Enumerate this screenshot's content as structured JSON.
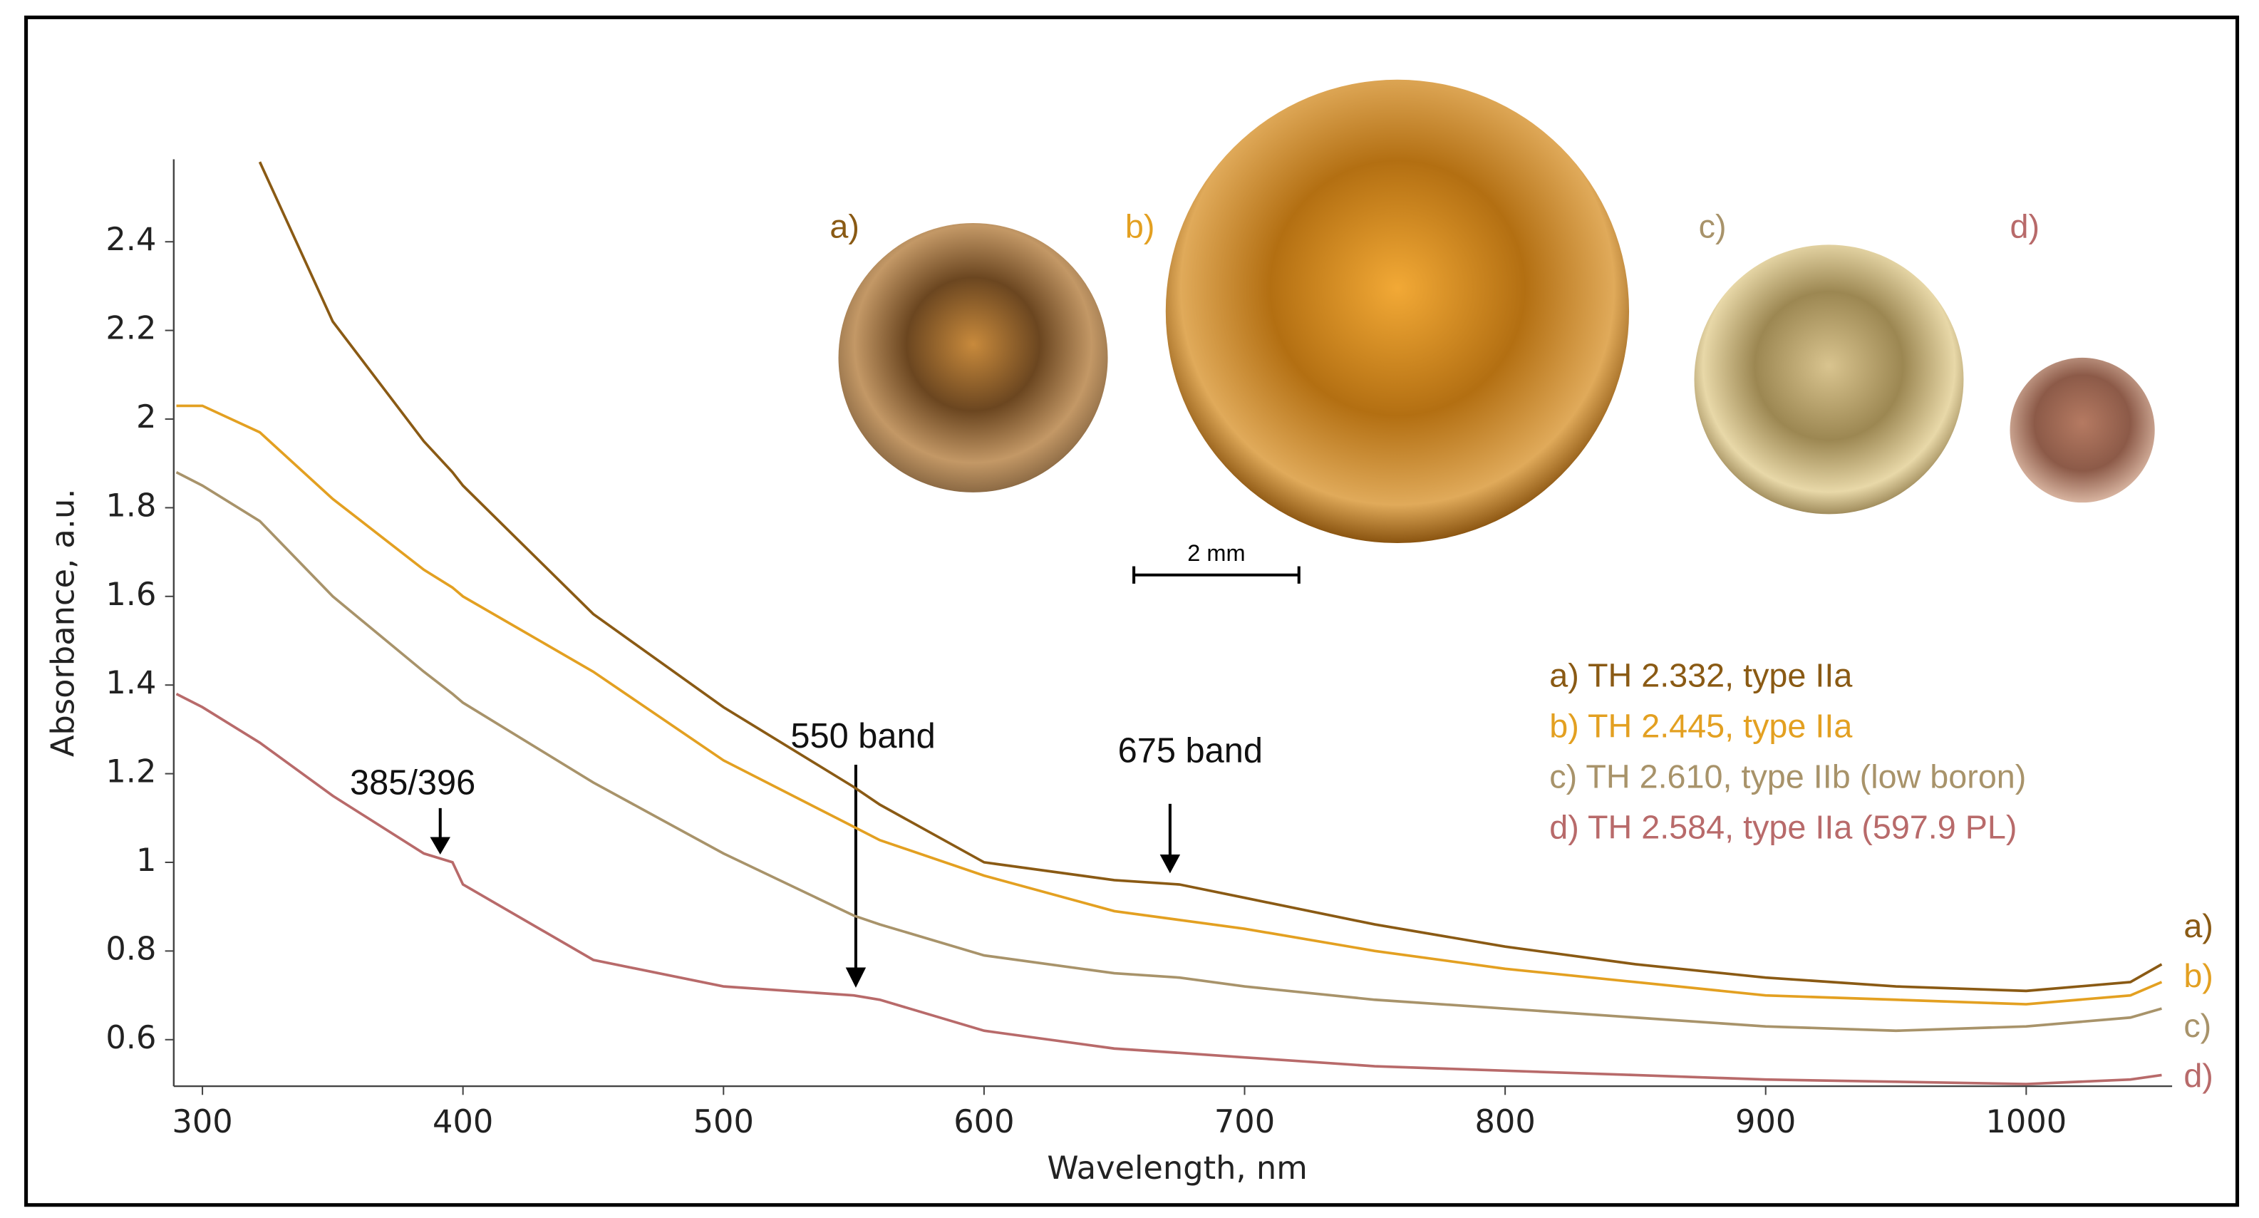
{
  "chart_data": {
    "type": "line",
    "x_label": "Wavelength, nm",
    "y_label": "Absorbance, a.u.",
    "xlim": [
      289,
      1056
    ],
    "ylim": [
      0.495,
      2.586
    ],
    "xticks": [
      300,
      400,
      500,
      600,
      700,
      800,
      900,
      1000
    ],
    "yticks": [
      0.6,
      0.8,
      1,
      1.2,
      1.4,
      1.6,
      1.8,
      2,
      2.2,
      2.4
    ],
    "x": [
      290,
      300,
      322,
      350,
      385,
      396,
      400,
      450,
      500,
      550,
      560,
      600,
      650,
      675,
      700,
      750,
      800,
      850,
      900,
      950,
      1000,
      1040,
      1052
    ],
    "series": [
      {
        "name": "a) TH 2.332, type IIa",
        "color": "#8a5a14",
        "values": [
          null,
          null,
          2.58,
          2.22,
          1.95,
          1.88,
          1.85,
          1.56,
          1.35,
          1.17,
          1.13,
          1.0,
          0.96,
          0.95,
          0.92,
          0.86,
          0.81,
          0.77,
          0.74,
          0.72,
          0.71,
          0.73,
          0.77
        ]
      },
      {
        "name": "b) TH 2.445, type IIa",
        "color": "#e3a021",
        "values": [
          2.03,
          2.03,
          1.97,
          1.82,
          1.66,
          1.62,
          1.6,
          1.43,
          1.23,
          1.08,
          1.05,
          0.97,
          0.89,
          0.87,
          0.85,
          0.8,
          0.76,
          0.73,
          0.7,
          0.69,
          0.68,
          0.7,
          0.73
        ]
      },
      {
        "name": "c) TH 2.610, type IIb (low boron)",
        "color": "#a8936a",
        "values": [
          1.88,
          1.85,
          1.77,
          1.6,
          1.43,
          1.38,
          1.36,
          1.18,
          1.02,
          0.88,
          0.86,
          0.79,
          0.75,
          0.74,
          0.72,
          0.69,
          0.67,
          0.65,
          0.63,
          0.62,
          0.63,
          0.65,
          0.67
        ]
      },
      {
        "name": "d) TH 2.584, type IIa (597.9 PL)",
        "color": "#b86a6a",
        "values": [
          1.38,
          1.35,
          1.27,
          1.15,
          1.02,
          1.0,
          0.95,
          0.78,
          0.72,
          0.7,
          0.69,
          0.62,
          0.58,
          0.57,
          0.56,
          0.54,
          0.53,
          0.52,
          0.51,
          0.505,
          0.5,
          0.51,
          0.52
        ]
      }
    ],
    "end_labels": [
      "a)",
      "b)",
      "c)",
      "d)"
    ],
    "annotations": [
      "385/396",
      "550 band",
      "675 band"
    ],
    "gem_labels": [
      "a)",
      "b)",
      "c)",
      "d)"
    ],
    "scale_bar": "2 mm"
  }
}
